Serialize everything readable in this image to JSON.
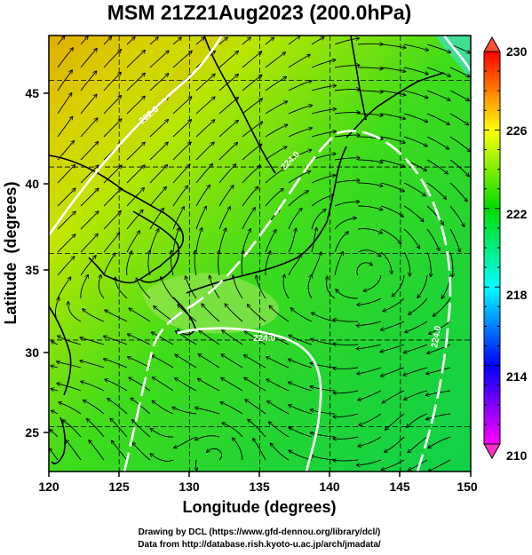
{
  "title": "MSM 21Z21Aug2023 (200.0hPa)",
  "x_axis": {
    "label": "Longitude (degrees)",
    "ticks": [
      "120",
      "125",
      "130",
      "135",
      "140",
      "145",
      "150"
    ]
  },
  "y_axis": {
    "label": "Latitude  (degrees)",
    "ticks": [
      "25",
      "30",
      "35",
      "40",
      "45"
    ]
  },
  "colorbar": {
    "ticks": [
      "210",
      "214",
      "218",
      "222",
      "226",
      "230"
    ],
    "colors": [
      "#ff00ff",
      "#0000ff",
      "#00ffff",
      "#00dd00",
      "#ffff00",
      "#ff0000"
    ]
  },
  "contour_labels": [
    "222.0",
    "224.0",
    "224.0",
    "224.0"
  ],
  "credits": {
    "line1": "Drawing by DCL (https://www.gfd-dennou.org/library/dcl/)",
    "line2": "Data from http://database.rish.kyoto-u.ac.jp/arch/jmadata/"
  },
  "chart_data": {
    "type": "heatmap",
    "title": "MSM 21Z21Aug2023 (200.0hPa)",
    "xlabel": "Longitude (degrees)",
    "ylabel": "Latitude  (degrees)",
    "xlim": [
      120,
      150
    ],
    "ylim": [
      22.4,
      47.6
    ],
    "color_range": [
      210,
      230
    ],
    "colorbar_ticks": [
      210,
      214,
      218,
      222,
      226,
      230
    ],
    "overlay": "streamlines and white contours with coastlines",
    "contours": [
      222.0,
      224.0
    ],
    "grid": true
  }
}
